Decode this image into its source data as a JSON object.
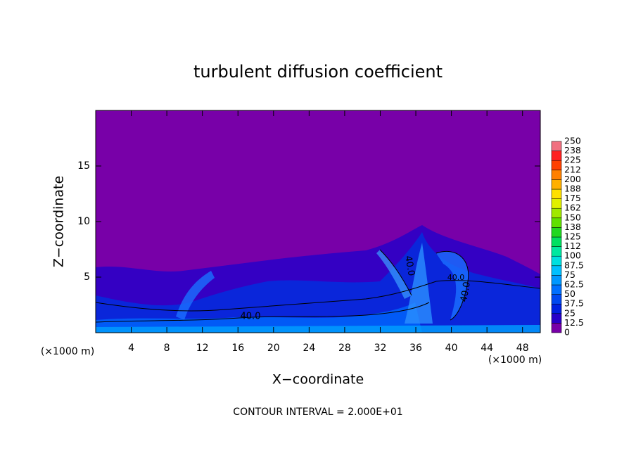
{
  "chart_data": {
    "type": "contour",
    "title": "turbulent diffusion coefficient",
    "x_label": "X−coordinate",
    "y_label": "Z−coordinate",
    "x_unit": "(×1000 m)",
    "x_unit_right": "(×1000 m)",
    "footer": "CONTOUR INTERVAL = 2.000E+01",
    "contour_labels": [
      "40.0",
      "40.0",
      "40.0",
      "40.0"
    ],
    "xlim": [
      0,
      50
    ],
    "ylim": [
      0,
      20
    ],
    "xticks": [
      4,
      8,
      12,
      16,
      20,
      24,
      28,
      32,
      36,
      40,
      44,
      48
    ],
    "yticks": [
      5,
      10,
      15
    ],
    "colorbar": {
      "levels": [
        0,
        12.5,
        25,
        37.5,
        50,
        62.5,
        75,
        87.5,
        100,
        {
          "value": 112.5,
          "label": "112"
        },
        125,
        {
          "value": 137.5,
          "label": "138"
        },
        150,
        {
          "value": 162.5,
          "label": "162"
        },
        175,
        {
          "value": 187.5,
          "label": "188"
        },
        200,
        {
          "value": 212.5,
          "label": "212"
        },
        225,
        {
          "value": 237.5,
          "label": "238"
        },
        250
      ],
      "colors": [
        "#7800a8",
        "#2800c8",
        "#0020e0",
        "#0048f0",
        "#0070ff",
        "#0098ff",
        "#00c0ff",
        "#00e0e0",
        "#00e8a0",
        "#00e060",
        "#20d820",
        "#60e000",
        "#a0e800",
        "#e0f000",
        "#ffe000",
        "#ffb000",
        "#ff8000",
        "#ff4000",
        "#ff2020",
        "#f07080"
      ]
    }
  }
}
